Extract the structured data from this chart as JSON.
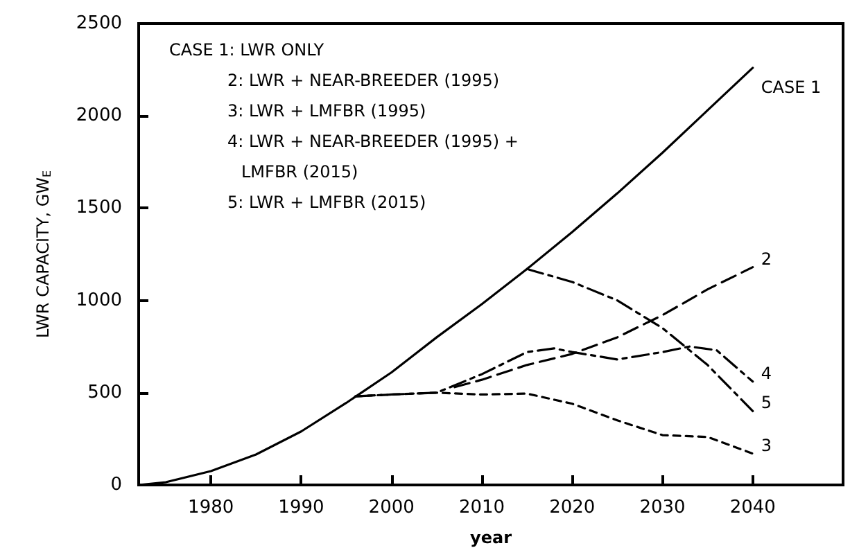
{
  "chart_data": {
    "type": "line",
    "xlabel": "year",
    "ylabel": "LWR CAPACITY, GW$_{E}$",
    "x": [
      1972,
      1975,
      1980,
      1985,
      1990,
      1995,
      2000,
      2005,
      2010,
      2015,
      2020,
      2025,
      2030,
      2035,
      2040
    ],
    "xlim": [
      1972,
      2050
    ],
    "xticks": [
      1980,
      1990,
      2000,
      2010,
      2020,
      2030,
      2040
    ],
    "ylim": [
      0,
      2500
    ],
    "yticks": [
      0,
      500,
      1000,
      1500,
      2000,
      2500
    ],
    "grid": false,
    "marker": "none",
    "series": [
      {
        "name": "CASE 1",
        "color": "#000000",
        "line_style": "solid",
        "values": [
          0,
          15,
          75,
          165,
          290,
          445,
          610,
          800,
          980,
          1170,
          1370,
          1580,
          1800,
          2030,
          2260
        ]
      },
      {
        "name": "2",
        "color": "#000000",
        "line_style": "dashed",
        "x": [
          2007,
          2010,
          2015,
          2020,
          2025,
          2030,
          2035,
          2040
        ],
        "values": [
          530,
          570,
          650,
          710,
          800,
          920,
          1060,
          1180
        ]
      },
      {
        "name": "3",
        "color": "#000000",
        "line_style": "dotted",
        "x": [
          1996,
          2000,
          2005,
          2010,
          2015,
          2020,
          2025,
          2030,
          2035,
          2040
        ],
        "values": [
          480,
          490,
          500,
          490,
          495,
          440,
          350,
          270,
          260,
          170
        ]
      },
      {
        "name": "4",
        "color": "#000000",
        "line_style": "dashdot",
        "x": [
          1996,
          2000,
          2005,
          2010,
          2015,
          2018,
          2020,
          2025,
          2030,
          2033,
          2036,
          2040
        ],
        "values": [
          480,
          490,
          500,
          600,
          720,
          740,
          720,
          680,
          720,
          750,
          730,
          560
        ]
      },
      {
        "name": "5",
        "color": "#000000",
        "line_style": "dashdot",
        "x": [
          2015,
          2020,
          2025,
          2030,
          2035,
          2040
        ],
        "values": [
          1170,
          1100,
          1000,
          850,
          650,
          400
        ]
      }
    ],
    "annotations": [
      "CASE 1: LWR ONLY",
      "2: LWR + NEAR-BREEDER (1995)",
      "3: LWR + LMFBR (1995)",
      "4: LWR + NEAR-BREEDER (1995) +",
      "LMFBR (2015)",
      "5: LWR + LMFBR (2015)"
    ]
  }
}
